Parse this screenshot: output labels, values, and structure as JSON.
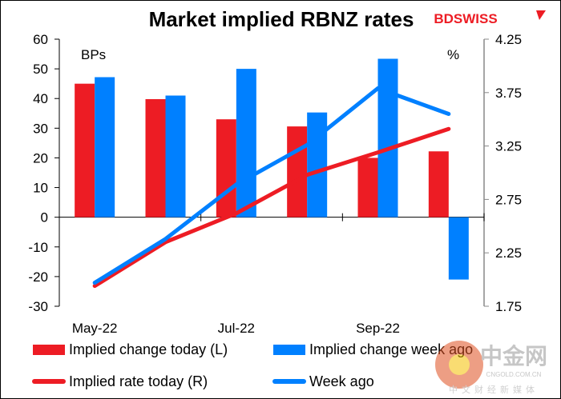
{
  "brand": "BDSWISS",
  "watermark": {
    "name": "中金网",
    "url_text": "CNGOLD.COM.CN",
    "tagline": "中文财经新媒体"
  },
  "colors": {
    "red": "#ed1c24",
    "blue": "#0080ff"
  },
  "chart_data": {
    "type": "bar",
    "title": "Market implied RBNZ rates",
    "left_unit": "BPs",
    "right_unit": "%",
    "categories": [
      "May-22",
      "",
      "Jul-22",
      "",
      "Sep-22",
      ""
    ],
    "ylim": [
      -30,
      60
    ],
    "yticks": [
      60,
      50,
      40,
      30,
      20,
      10,
      0,
      -10,
      -20,
      -30
    ],
    "y2lim": [
      1.75,
      4.25
    ],
    "y2ticks": [
      "4.25",
      "3.75",
      "3.25",
      "2.75",
      "2.25",
      "1.75"
    ],
    "series": [
      {
        "name": "Implied change today (L)",
        "kind": "bar",
        "axis": "left",
        "color": "#ed1c24",
        "values": [
          45,
          39.8,
          33,
          30.6,
          20,
          22.2
        ]
      },
      {
        "name": "Implied change week ago",
        "kind": "bar",
        "axis": "left",
        "color": "#0080ff",
        "values": [
          47.2,
          41,
          50,
          35.3,
          53.4,
          -21
        ]
      },
      {
        "name": "Implied rate today (R)",
        "kind": "line",
        "axis": "right",
        "color": "#ed1c24",
        "values": [
          1.94,
          2.35,
          2.62,
          2.98,
          3.19,
          3.41
        ]
      },
      {
        "name": "Week ago",
        "kind": "line",
        "axis": "right",
        "color": "#0080ff",
        "values": [
          1.97,
          2.38,
          2.89,
          3.26,
          3.79,
          3.55
        ]
      }
    ]
  }
}
